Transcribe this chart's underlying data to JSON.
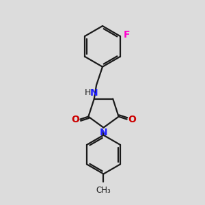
{
  "bg_color": "#dcdcdc",
  "bond_color": "#1a1a1a",
  "N_color": "#2020ff",
  "O_color": "#cc0000",
  "F_color": "#ff00cc",
  "H_color": "#1a1a1a",
  "line_width": 1.6,
  "font_size_atom": 9,
  "fig_size": [
    3.0,
    3.0
  ],
  "dpi": 100,
  "xlim": [
    0,
    10
  ],
  "ylim": [
    0,
    10
  ]
}
